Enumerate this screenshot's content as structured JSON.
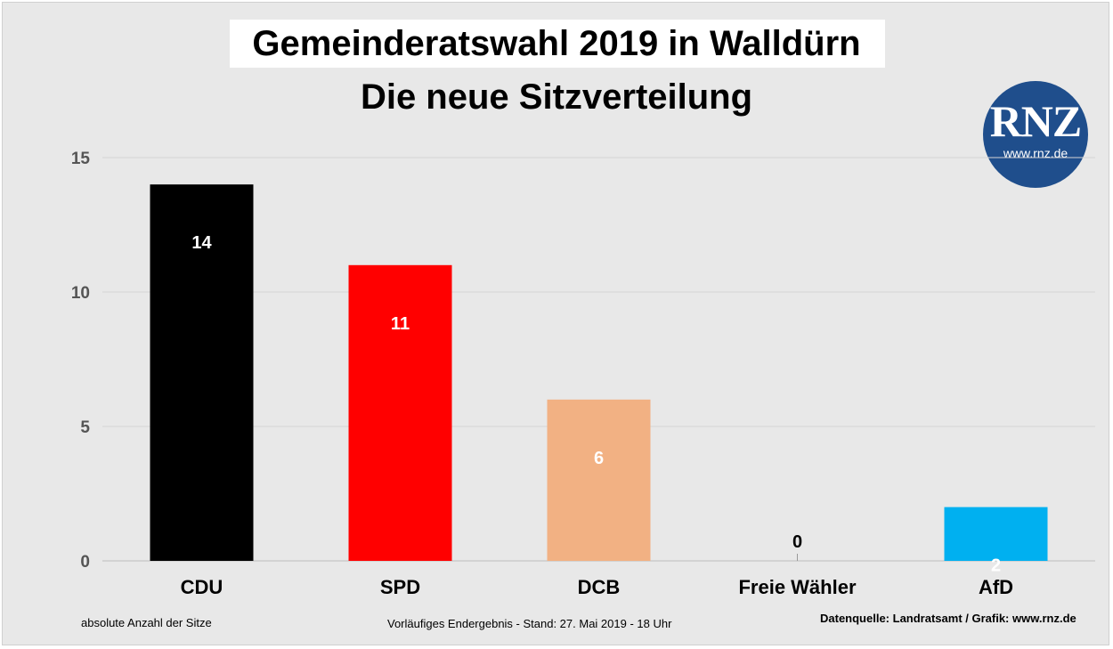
{
  "header": {
    "title": "Gemeinderatswahl 2019 in Walldürn",
    "subtitle": "Die neue Sitzverteilung"
  },
  "logo": {
    "text": "RNZ",
    "url": "www.rnz.de",
    "color": "#1f4e8c"
  },
  "footer": {
    "left": "absolute Anzahl der Sitze",
    "middle": "Vorläufiges Endergebnis - Stand: 27. Mai 2019  - 18 Uhr",
    "right": "Datenquelle: Landratsamt / Grafik: www.rnz.de"
  },
  "chart_data": {
    "type": "bar",
    "categories": [
      "CDU",
      "SPD",
      "DCB",
      "Freie Wähler",
      "AfD"
    ],
    "values": [
      14,
      11,
      6,
      0,
      2
    ],
    "colors": [
      "#000000",
      "#ff0000",
      "#f2b183",
      "#888888",
      "#00b0f0"
    ],
    "label_colors": [
      "#ffffff",
      "#ffffff",
      "#ffffff",
      "#000000",
      "#ffffff"
    ],
    "ylim": [
      0,
      15
    ],
    "yticks": [
      0,
      5,
      10,
      15
    ],
    "grid": true
  }
}
